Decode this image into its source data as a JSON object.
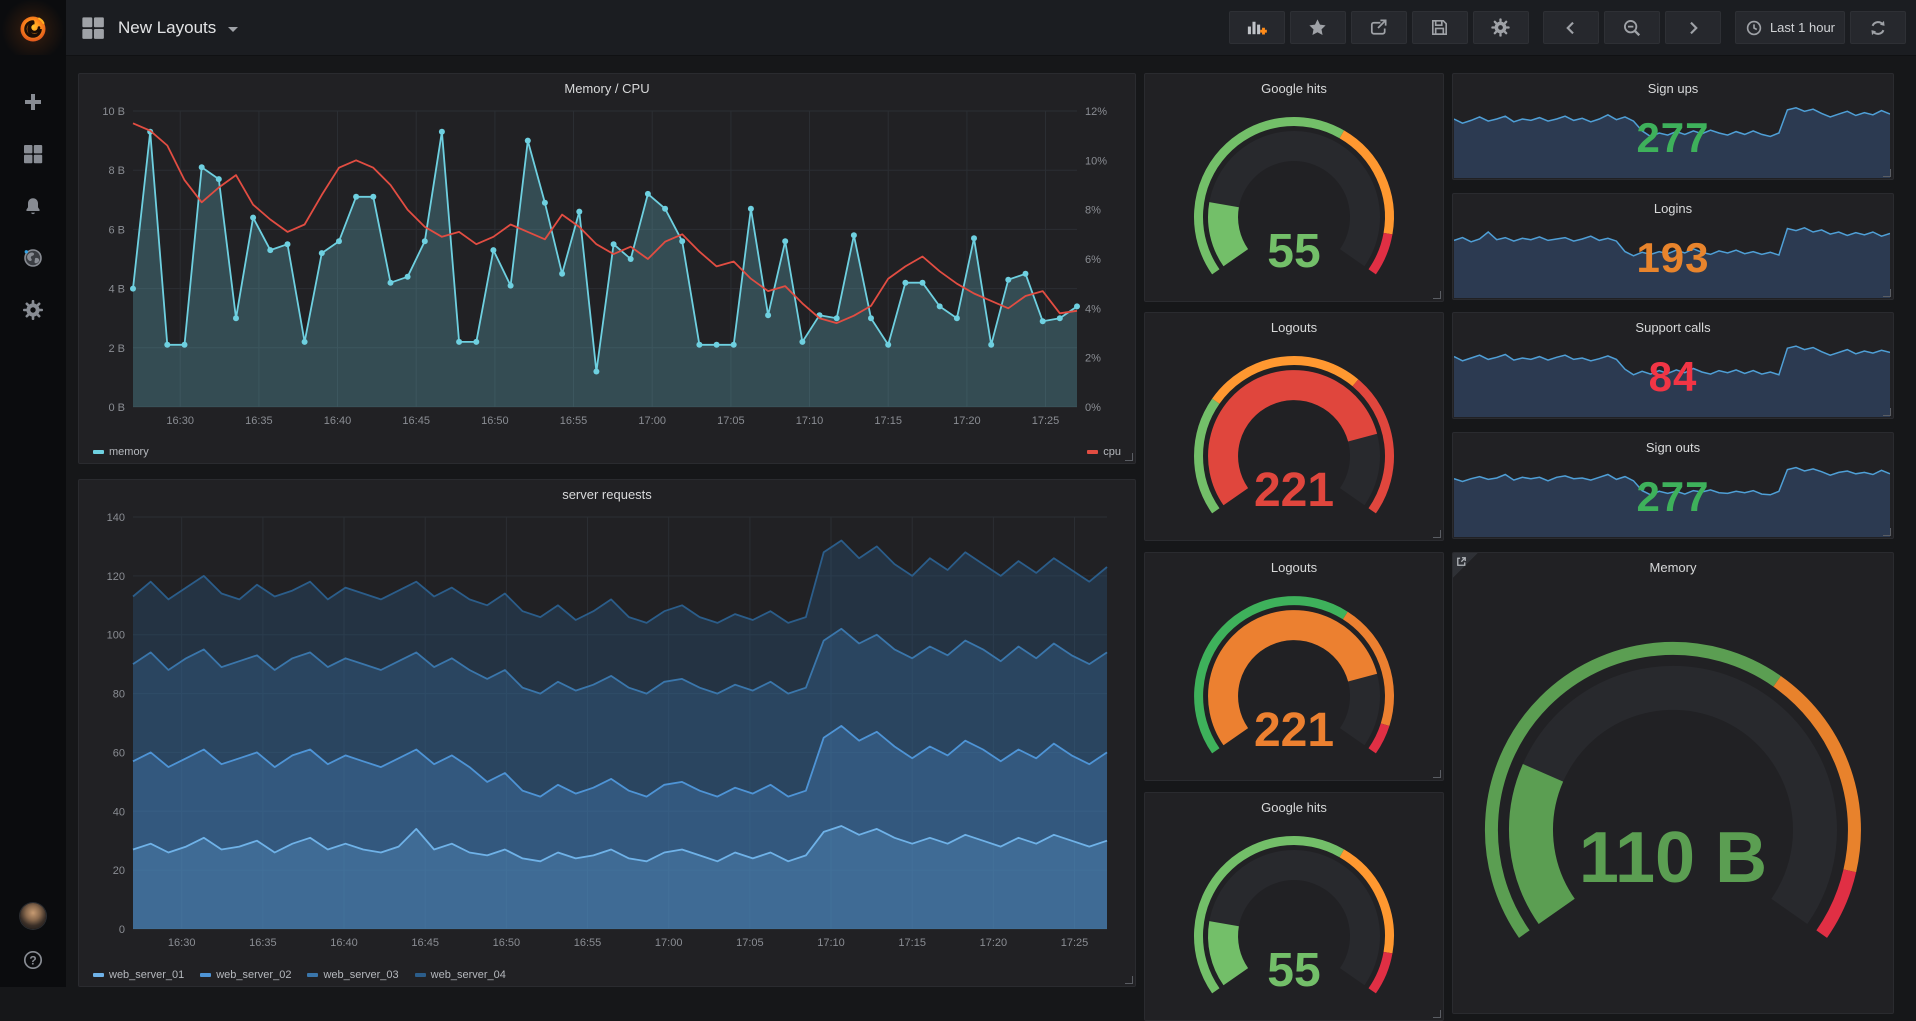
{
  "navbar": {
    "dashboard_title": "New Layouts",
    "time_range_label": "Last 1 hour",
    "actions": [
      "add-panel",
      "star",
      "share",
      "save",
      "settings",
      "cycle-prev",
      "zoom-out",
      "cycle-next",
      "time-range",
      "refresh"
    ]
  },
  "sidebar": {
    "items": [
      "grafana-logo",
      "create",
      "dashboards",
      "alerting",
      "explore",
      "configuration",
      "profile",
      "help"
    ]
  },
  "colors": {
    "green": "#73bf69",
    "orange": "#ff9830",
    "orange_text": "#e8842c",
    "red": "#e02f44",
    "cyan": "#6ed0e0",
    "cpu_red": "#e24d42",
    "spark_blue": "#5794f2",
    "panel_bg": "#212124"
  },
  "memory_cpu": {
    "title": "Memory / CPU",
    "x_labels": [
      "16:30",
      "16:35",
      "16:40",
      "16:45",
      "16:50",
      "16:55",
      "17:00",
      "17:05",
      "17:10",
      "17:15",
      "17:20",
      "17:25"
    ],
    "left_ticks": [
      "0 B",
      "2 B",
      "4 B",
      "6 B",
      "8 B",
      "10 B"
    ],
    "left_max": 10,
    "right_ticks": [
      "0%",
      "2%",
      "4%",
      "6%",
      "8%",
      "10%",
      "12%"
    ],
    "right_max": 12,
    "legend": [
      {
        "label": "memory",
        "color": "#6ed0e0"
      },
      {
        "label": "cpu",
        "color": "#e24d42"
      }
    ],
    "series": [
      {
        "name": "memory",
        "color": "#6ed0e0",
        "fill": "rgba(110,208,224,0.25)",
        "axis": "left",
        "markers": true,
        "values": [
          4.0,
          9.3,
          2.1,
          2.1,
          8.1,
          7.7,
          3.0,
          6.4,
          5.3,
          5.5,
          2.2,
          5.2,
          5.6,
          7.1,
          7.1,
          4.2,
          4.4,
          5.6,
          9.3,
          2.2,
          2.2,
          5.3,
          4.1,
          9.0,
          6.9,
          4.5,
          6.6,
          1.2,
          5.5,
          5.0,
          7.2,
          6.7,
          5.6,
          2.1,
          2.1,
          2.1,
          6.7,
          3.1,
          5.6,
          2.2,
          3.1,
          3.0,
          5.8,
          3.0,
          2.1,
          4.2,
          4.2,
          3.4,
          3.0,
          5.7,
          2.1,
          4.3,
          4.5,
          2.9,
          3.0,
          3.4
        ]
      },
      {
        "name": "cpu",
        "color": "#e24d42",
        "fill": null,
        "axis": "right",
        "markers": false,
        "values": [
          11.5,
          11.2,
          10.6,
          9.2,
          8.3,
          8.9,
          9.4,
          8.2,
          7.6,
          7.1,
          7.4,
          8.6,
          9.7,
          10.0,
          9.7,
          9.0,
          8.0,
          7.3,
          6.9,
          7.1,
          6.6,
          6.9,
          7.4,
          7.1,
          6.8,
          7.8,
          7.3,
          6.6,
          6.2,
          6.5,
          6.0,
          6.7,
          7.0,
          6.3,
          5.7,
          5.9,
          5.2,
          4.7,
          4.9,
          4.2,
          3.6,
          3.4,
          3.7,
          4.1,
          5.2,
          5.7,
          6.1,
          5.5,
          5.0,
          4.6,
          4.3,
          4.0,
          4.5,
          4.7,
          3.8,
          3.9
        ]
      }
    ]
  },
  "server_requests": {
    "title": "server requests",
    "x_labels": [
      "16:30",
      "16:35",
      "16:40",
      "16:45",
      "16:50",
      "16:55",
      "17:00",
      "17:05",
      "17:10",
      "17:15",
      "17:20",
      "17:25"
    ],
    "y_ticks": [
      "0",
      "20",
      "40",
      "60",
      "80",
      "100",
      "120",
      "140"
    ],
    "y_max": 140,
    "legend": [
      {
        "label": "web_server_01",
        "color": "#6fb2e8"
      },
      {
        "label": "web_server_02",
        "color": "#4e94d6"
      },
      {
        "label": "web_server_03",
        "color": "#3a76ab"
      },
      {
        "label": "web_server_04",
        "color": "#2b5d8a"
      }
    ],
    "series": [
      {
        "name": "web_server_04",
        "color": "#2b5d8a",
        "fill": "rgba(43,93,138,0.30)",
        "axis": "left",
        "markers": false,
        "values": [
          113,
          118,
          112,
          116,
          120,
          114,
          112,
          117,
          113,
          115,
          118,
          112,
          116,
          114,
          112,
          115,
          118,
          113,
          116,
          112,
          110,
          114,
          108,
          106,
          110,
          105,
          108,
          112,
          106,
          104,
          108,
          110,
          106,
          104,
          107,
          105,
          108,
          104,
          106,
          128,
          132,
          126,
          130,
          124,
          120,
          126,
          122,
          128,
          124,
          120,
          125,
          121,
          126,
          122,
          118,
          123
        ]
      },
      {
        "name": "web_server_03",
        "color": "#3a76ab",
        "fill": "rgba(58,118,171,0.28)",
        "axis": "left",
        "markers": false,
        "values": [
          90,
          94,
          88,
          92,
          95,
          89,
          91,
          93,
          88,
          92,
          94,
          89,
          92,
          90,
          88,
          91,
          94,
          89,
          92,
          88,
          85,
          88,
          82,
          80,
          84,
          81,
          83,
          86,
          82,
          80,
          84,
          85,
          82,
          80,
          83,
          81,
          84,
          80,
          82,
          98,
          102,
          97,
          100,
          95,
          92,
          96,
          93,
          98,
          95,
          91,
          96,
          92,
          97,
          93,
          90,
          94
        ]
      },
      {
        "name": "web_server_02",
        "color": "#4e94d6",
        "fill": "rgba(78,148,214,0.25)",
        "axis": "left",
        "markers": false,
        "values": [
          57,
          60,
          55,
          58,
          61,
          56,
          58,
          60,
          55,
          59,
          61,
          56,
          59,
          57,
          55,
          58,
          61,
          56,
          59,
          55,
          50,
          53,
          47,
          45,
          49,
          46,
          48,
          51,
          47,
          45,
          49,
          50,
          47,
          45,
          48,
          46,
          49,
          45,
          47,
          65,
          69,
          64,
          67,
          62,
          58,
          62,
          59,
          64,
          61,
          57,
          61,
          58,
          63,
          59,
          56,
          60
        ]
      },
      {
        "name": "web_server_01",
        "color": "#6fb2e8",
        "fill": "rgba(111,178,232,0.22)",
        "axis": "left",
        "markers": false,
        "values": [
          27,
          29,
          26,
          28,
          31,
          27,
          28,
          30,
          26,
          29,
          31,
          27,
          29,
          27,
          26,
          28,
          34,
          27,
          29,
          26,
          25,
          27,
          24,
          23,
          26,
          24,
          25,
          27,
          24,
          23,
          26,
          27,
          25,
          23,
          26,
          24,
          26,
          23,
          25,
          33,
          35,
          32,
          34,
          31,
          29,
          31,
          29,
          32,
          30,
          28,
          31,
          29,
          32,
          30,
          28,
          30
        ]
      }
    ]
  },
  "gauges": [
    {
      "title": "Google hits",
      "value": "55",
      "color": "#73bf69",
      "frac": 0.18,
      "ring": [
        [
          0,
          0.62,
          "#73bf69"
        ],
        [
          0.62,
          0.9,
          "#ff9830"
        ],
        [
          0.9,
          1,
          "#e02f44"
        ]
      ]
    },
    {
      "title": "Logouts",
      "value": "221",
      "color": "#e0463d",
      "frac": 0.8,
      "ring": [
        [
          0,
          0.28,
          "#73bf69"
        ],
        [
          0.28,
          0.66,
          "#ff9830"
        ],
        [
          0.66,
          1,
          "#e0463d"
        ]
      ]
    },
    {
      "title": "Logouts",
      "value": "221",
      "color": "#ec8030",
      "frac": 0.8,
      "ring": [
        [
          0,
          0.63,
          "#3eb15b"
        ],
        [
          0.63,
          0.93,
          "#ec8030"
        ],
        [
          0.93,
          1,
          "#e02f44"
        ]
      ]
    },
    {
      "title": "Google hits",
      "value": "55",
      "color": "#73bf69",
      "frac": 0.18,
      "ring": [
        [
          0,
          0.62,
          "#73bf69"
        ],
        [
          0.62,
          0.9,
          "#ff9830"
        ],
        [
          0.9,
          1,
          "#e02f44"
        ]
      ]
    }
  ],
  "big_gauge": {
    "title": "Memory",
    "value": "110 B",
    "color": "#5b9e52",
    "frac": 0.235,
    "ring": [
      [
        0,
        0.64,
        "#5b9e52"
      ],
      [
        0.64,
        0.912,
        "#e8822c"
      ],
      [
        0.912,
        1,
        "#e02f44"
      ]
    ]
  },
  "stats": [
    {
      "title": "Sign ups",
      "value": "277",
      "color": "#3eb15b",
      "spark": [
        0.8,
        0.74,
        0.78,
        0.83,
        0.77,
        0.8,
        0.84,
        0.76,
        0.8,
        0.78,
        0.82,
        0.77,
        0.8,
        0.84,
        0.78,
        0.81,
        0.76,
        0.8,
        0.86,
        0.79,
        0.83,
        0.77,
        0.63,
        0.55,
        0.6,
        0.57,
        0.62,
        0.58,
        0.63,
        0.59,
        0.64,
        0.6,
        0.57,
        0.62,
        0.58,
        0.63,
        0.58,
        0.55,
        0.6,
        0.93,
        0.96,
        0.91,
        0.94,
        0.88,
        0.83,
        0.87,
        0.91,
        0.85,
        0.89,
        0.86,
        0.92,
        0.87
      ]
    },
    {
      "title": "Logins",
      "value": "193",
      "color": "#e8842c",
      "spark": [
        0.78,
        0.82,
        0.76,
        0.8,
        0.9,
        0.79,
        0.82,
        0.77,
        0.81,
        0.79,
        0.83,
        0.78,
        0.8,
        0.82,
        0.77,
        0.8,
        0.84,
        0.78,
        0.81,
        0.77,
        0.62,
        0.56,
        0.61,
        0.58,
        0.62,
        0.59,
        0.64,
        0.6,
        0.66,
        0.61,
        0.58,
        0.63,
        0.6,
        0.64,
        0.59,
        0.62,
        0.58,
        0.61,
        0.57,
        0.95,
        0.92,
        0.96,
        0.9,
        0.93,
        0.87,
        0.9,
        0.85,
        0.89,
        0.86,
        0.9,
        0.84,
        0.88
      ]
    },
    {
      "title": "Support calls",
      "value": "84",
      "color": "#f23545",
      "spark": [
        0.82,
        0.76,
        0.8,
        0.84,
        0.78,
        0.81,
        0.85,
        0.77,
        0.8,
        0.78,
        0.82,
        0.77,
        0.81,
        0.84,
        0.78,
        0.8,
        0.76,
        0.79,
        0.83,
        0.78,
        0.64,
        0.56,
        0.61,
        0.57,
        0.62,
        0.58,
        0.63,
        0.59,
        0.65,
        0.6,
        0.57,
        0.62,
        0.59,
        0.63,
        0.58,
        0.62,
        0.57,
        0.6,
        0.56,
        0.94,
        0.97,
        0.92,
        0.95,
        0.89,
        0.84,
        0.88,
        0.92,
        0.86,
        0.9,
        0.87,
        0.91,
        0.88
      ]
    },
    {
      "title": "Sign outs",
      "value": "277",
      "color": "#3eb15b",
      "spark": [
        0.79,
        0.75,
        0.79,
        0.82,
        0.78,
        0.8,
        0.85,
        0.77,
        0.81,
        0.79,
        0.81,
        0.76,
        0.81,
        0.83,
        0.79,
        0.8,
        0.77,
        0.81,
        0.85,
        0.78,
        0.82,
        0.76,
        0.62,
        0.56,
        0.61,
        0.58,
        0.61,
        0.57,
        0.62,
        0.6,
        0.63,
        0.59,
        0.58,
        0.61,
        0.59,
        0.62,
        0.57,
        0.56,
        0.61,
        0.92,
        0.95,
        0.9,
        0.93,
        0.89,
        0.84,
        0.88,
        0.9,
        0.86,
        0.88,
        0.85,
        0.91,
        0.86
      ]
    }
  ],
  "spark_style": {
    "line": "#4f9fd6",
    "fill": "rgba(87,148,242,0.22)"
  }
}
